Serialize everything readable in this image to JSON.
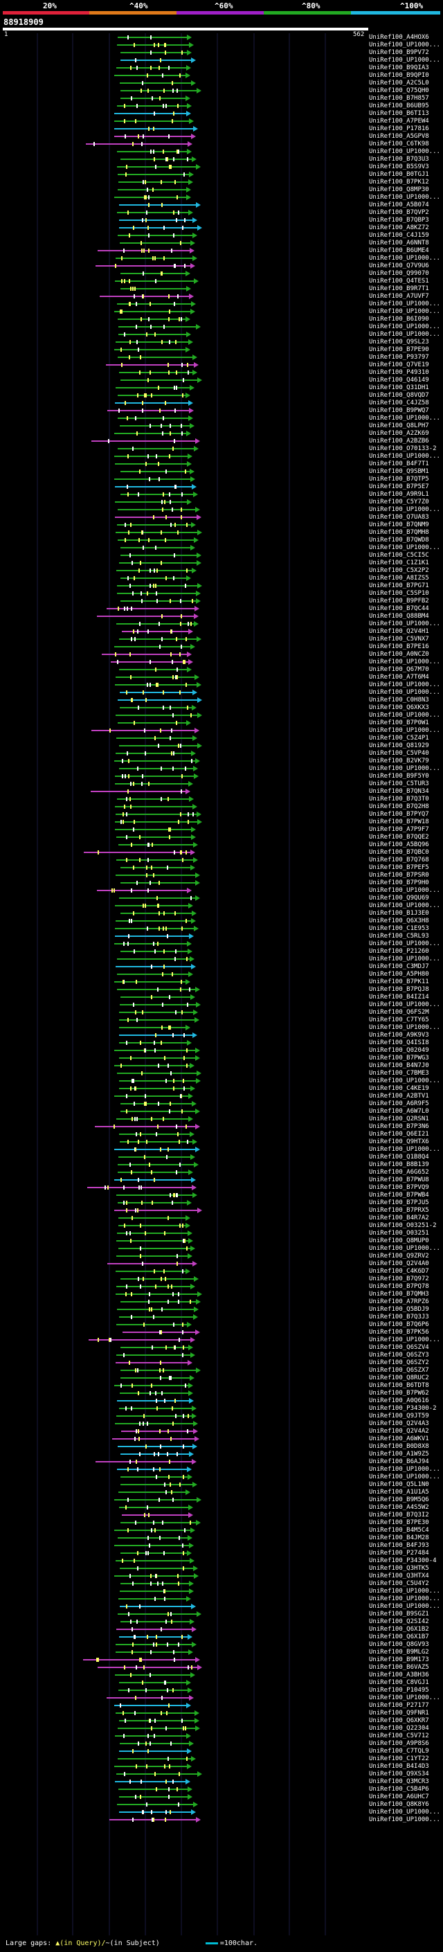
{
  "legend": {
    "labels": [
      "20%",
      "^40%",
      "^60%",
      "^80%",
      "^100%"
    ],
    "colors": [
      "#e0213a",
      "#e07a1a",
      "#a020c8",
      "#22aa22",
      "#20b8e0"
    ]
  },
  "query": {
    "id": "88918909",
    "start": "1",
    "end": "562"
  },
  "hit_names": [
    "UniRef100_A4HOX6",
    "UniRef100_UP1000...",
    "UniRef100_B9PV72",
    "UniRef100_UP1000...",
    "UniRef100_B9QIA3",
    "UniRef100_B9QPI0",
    "UniRef100_A2C5L0",
    "UniRef100_Q75QH0",
    "UniRef100_B7H857",
    "UniRef100_B6UB95",
    "UniRef100_B6TI13",
    "UniRef100_A7PEW4",
    "UniRef100_P17816",
    "UniRef100_A5GPV8",
    "UniRef100_C6TK98",
    "UniRef100_UP1000...",
    "UniRef100_B7Q3U3",
    "UniRef100_B5S9V3",
    "UniRef100_B0TGJ1",
    "UniRef100_B7PK12",
    "UniRef100_Q8MP30",
    "UniRef100_UP1000...",
    "UniRef100_A5B074",
    "UniRef100_B7QVP2",
    "UniRef100_B7QBP3",
    "UniRef100_A8KZ72",
    "UniRef100_C4J159",
    "UniRef100_A6NNT8",
    "UniRef100_B6UME4",
    "UniRef100_UP1000...",
    "UniRef100_Q7V9U6",
    "UniRef100_Q99070",
    "UniRef100_Q4TES1",
    "UniRef100_B9R7T1",
    "UniRef100_A7UVF7",
    "UniRef100_UP1000...",
    "UniRef100_UP1000...",
    "UniRef100_B6I090",
    "UniRef100_UP1000...",
    "UniRef100_UP1000...",
    "UniRef100_Q9SL23",
    "UniRef100_B7PE90",
    "UniRef100_P93797",
    "UniRef100_Q7VE19",
    "UniRef100_P49310",
    "UniRef100_Q46149",
    "UniRef100_Q31DH1",
    "UniRef100_Q8VQD7",
    "UniRef100_C4JZ58",
    "UniRef100_B9PWQ7",
    "UniRef100_UP1000...",
    "UniRef100_Q8LPH7",
    "UniRef100_A2ZK69",
    "UniRef100_A2BZB6",
    "UniRef100_O70133-2",
    "UniRef100_UP1000...",
    "UniRef100_B4F7T1",
    "UniRef100_Q9SBM1",
    "UniRef100_B7QTP5",
    "UniRef100_B7P5E7",
    "UniRef100_A9R9L1",
    "UniRef100_C5Y7Z0",
    "UniRef100_UP1000...",
    "UniRef100_Q7UA83",
    "UniRef100_B7QNM9",
    "UniRef100_B7QMH8",
    "UniRef100_B7QWD8",
    "UniRef100_UP1000...",
    "UniRef100_C5CI5C",
    "UniRef100_C1Z1K1",
    "UniRef100_C5X2P2",
    "UniRef100_A8IZS5",
    "UniRef100_B7PG71",
    "UniRef100_C5SP10",
    "UniRef100_B9PFB2",
    "UniRef100_B7QC44",
    "UniRef100_Q88BM4",
    "UniRef100_UP1000...",
    "UniRef100_Q2V4H1",
    "UniRef100_C5VNX7",
    "UniRef100_B7PE16",
    "UniRef100_A0NCZ0",
    "UniRef100_UP1000...",
    "UniRef100_Q67M70",
    "UniRef100_A7T6M4",
    "UniRef100_UP1000...",
    "UniRef100_UP1000...",
    "UniRef100_C0H8N3",
    "UniRef100_Q6XKX3",
    "UniRef100_UP1000...",
    "UniRef100_B7P0W1",
    "UniRef100_UP1000...",
    "UniRef100_C5Z4P1",
    "UniRef100_Q81929",
    "UniRef100_C5VP40",
    "UniRef100_B2VK79",
    "UniRef100_UP1000...",
    "UniRef100_B9F5Y0",
    "UniRef100_C5TUR3",
    "UniRef100_B7QN34",
    "UniRef100_B7Q3T0",
    "UniRef100_B7Q2H8",
    "UniRef100_B7PYQ7",
    "UniRef100_B7PW18",
    "UniRef100_A7P9F7",
    "UniRef100_B7QQE2",
    "UniRef100_A5BQ96",
    "UniRef100_B7QBC0",
    "UniRef100_B7Q768",
    "UniRef100_B7PEF5",
    "UniRef100_B7PSR0",
    "UniRef100_B7P9H0",
    "UniRef100_UP1000...",
    "UniRef100_Q9QU69",
    "UniRef100_UP1000...",
    "UniRef100_B1J3E0",
    "UniRef100_Q6X3H8",
    "UniRef100_C1E953",
    "UniRef100_C5RL93",
    "UniRef100_UP1000...",
    "UniRef100_P21260",
    "UniRef100_UP1000...",
    "UniRef100_C3MDJ7",
    "UniRef100_A5PH80",
    "UniRef100_B7PK11",
    "UniRef100_B7PQJ8",
    "UniRef100_B4IZ14",
    "UniRef100_UP1000...",
    "UniRef100_Q6FS2M",
    "UniRef100_C7TY65",
    "UniRef100_UP1000...",
    "UniRef100_A9K9V3",
    "UniRef100_Q4ISI8",
    "UniRef100_Q02049",
    "UniRef100_B7PWG3",
    "UniRef100_B4N7J0",
    "UniRef100_C7BME3",
    "UniRef100_UP1000...",
    "UniRef100_C4KE19",
    "UniRef100_A2BTV1",
    "UniRef100_A6R9F5",
    "UniRef100_A6W7L0",
    "UniRef100_Q2RSN1",
    "UniRef100_B7P3N6",
    "UniRef100_Q6EI21",
    "UniRef100_Q9HTX6",
    "UniRef100_UP1000...",
    "UniRef100_Q1B8Q4",
    "UniRef100_B8B139",
    "UniRef100_A6G652",
    "UniRef100_B7PWU8",
    "UniRef100_B7PVQ9",
    "UniRef100_B7PWB4",
    "UniRef100_B7PJU5",
    "UniRef100_B7PRX5",
    "UniRef100_B4R7A2",
    "UniRef100_O03251-2",
    "UniRef100_O03251",
    "UniRef100_Q8MUP0",
    "UniRef100_UP1000...",
    "UniRef100_Q9ZRV2",
    "UniRef100_Q2V4A0",
    "UniRef100_C4K6D7",
    "UniRef100_B7Q972",
    "UniRef100_B7PQ78",
    "UniRef100_B7QMH3",
    "UniRef100_A7RPZ6",
    "UniRef100_Q5BDJ9",
    "UniRef100_B7Q3J3",
    "UniRef100_B7Q6P6",
    "UniRef100_B7PK56",
    "UniRef100_UP1000...",
    "UniRef100_Q6SZV4",
    "UniRef100_Q6SZY3",
    "UniRef100_Q6SZY2",
    "UniRef100_Q6SZX7",
    "UniRef100_Q8RUC2",
    "UniRef100_B6TDT8",
    "UniRef100_B7PW62",
    "UniRef100_A0Q616",
    "UniRef100_P34300-2",
    "UniRef100_Q9JT59",
    "UniRef100_Q2V4A3",
    "UniRef100_Q2V4A2",
    "UniRef100_A6WKV1",
    "UniRef100_B0D8X8",
    "UniRef100_A1W9Z5",
    "UniRef100_B6AJ94",
    "UniRef100_UP1000...",
    "UniRef100_UP1000...",
    "UniRef100_Q5L1N0",
    "UniRef100_A1U1A5",
    "UniRef100_B9M5Q6",
    "UniRef100_A4S5W2",
    "UniRef100_B7Q3I2",
    "UniRef100_B7PE30",
    "UniRef100_B4M5C4",
    "UniRef100_B4JM28",
    "UniRef100_B4FJ93",
    "UniRef100_P27484",
    "UniRef100_P34300-4",
    "UniRef100_Q3HTK5",
    "UniRef100_Q3HTX4",
    "UniRef100_C5U4Y2",
    "UniRef100_UP1000...",
    "UniRef100_UP1000...",
    "UniRef100_UP1000...",
    "UniRef100_B9SGZ1",
    "UniRef100_Q2SI42",
    "UniRef100_Q6X1B2",
    "UniRef100_Q6X1B7",
    "UniRef100_Q8GV93",
    "UniRef100_B9MLG2",
    "UniRef100_B9M173",
    "UniRef100_B6VAZ5",
    "UniRef100_A3BH36",
    "UniRef100_C8VGJ1",
    "UniRef100_P10495",
    "UniRef100_UP1000...",
    "UniRef100_P27177",
    "UniRef100_Q9FNR1",
    "UniRef100_Q6XKR7",
    "UniRef100_Q22304",
    "UniRef100_C5V712",
    "UniRef100_A9P8S6",
    "UniRef100_C7TQL9",
    "UniRef100_C1YT22",
    "UniRef100_B4I4D3",
    "UniRef100_Q9XS34",
    "UniRef100_Q3MCR3",
    "UniRef100_C5B4P6",
    "UniRef100_A6UHC7",
    "UniRef100_Q8K8Y6",
    "UniRef100_UP1000...",
    "UniRef100_UP1000..."
  ],
  "footer": {
    "gaps_label": "Large gaps:",
    "insert_query": "▲(in Query)/",
    "insert_subject": "~(in Subject)",
    "line_label": "=100char."
  }
}
